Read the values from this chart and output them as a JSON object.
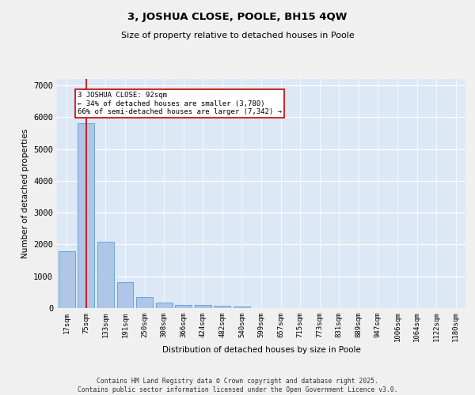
{
  "title": "3, JOSHUA CLOSE, POOLE, BH15 4QW",
  "subtitle": "Size of property relative to detached houses in Poole",
  "xlabel": "Distribution of detached houses by size in Poole",
  "ylabel": "Number of detached properties",
  "categories": [
    "17sqm",
    "75sqm",
    "133sqm",
    "191sqm",
    "250sqm",
    "308sqm",
    "366sqm",
    "424sqm",
    "482sqm",
    "540sqm",
    "599sqm",
    "657sqm",
    "715sqm",
    "773sqm",
    "831sqm",
    "889sqm",
    "947sqm",
    "1006sqm",
    "1064sqm",
    "1122sqm",
    "1180sqm"
  ],
  "values": [
    1780,
    5820,
    2080,
    820,
    350,
    185,
    110,
    90,
    80,
    55,
    0,
    0,
    0,
    0,
    0,
    0,
    0,
    0,
    0,
    0,
    0
  ],
  "bar_color": "#aec6e8",
  "bar_edge_color": "#5a9fd4",
  "background_color": "#dce8f5",
  "grid_color": "#ffffff",
  "fig_background": "#f0f0f0",
  "vline_x": 1,
  "vline_color": "#cc0000",
  "annotation_text": "3 JOSHUA CLOSE: 92sqm\n← 34% of detached houses are smaller (3,780)\n66% of semi-detached houses are larger (7,342) →",
  "annotation_box_color": "#cc0000",
  "ylim": [
    0,
    7200
  ],
  "yticks": [
    0,
    1000,
    2000,
    3000,
    4000,
    5000,
    6000,
    7000
  ],
  "footer_line1": "Contains HM Land Registry data © Crown copyright and database right 2025.",
  "footer_line2": "Contains public sector information licensed under the Open Government Licence v3.0."
}
